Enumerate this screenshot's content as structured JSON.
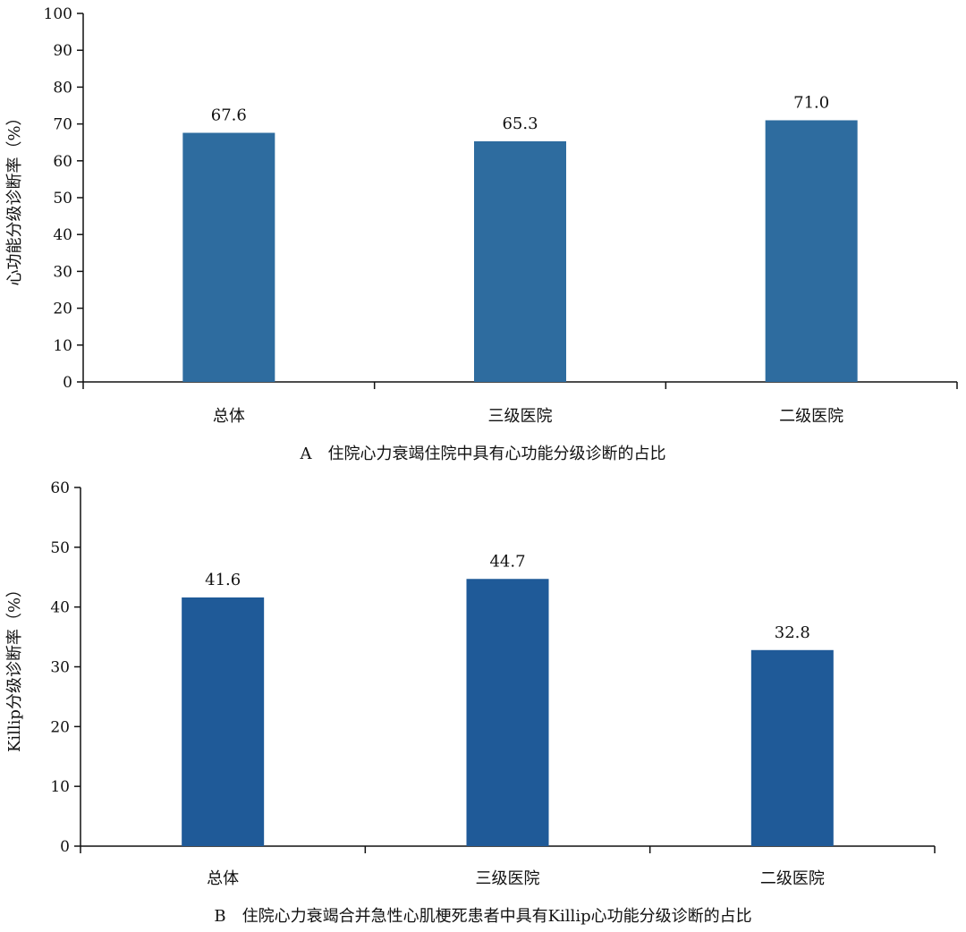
{
  "chart_data": [
    {
      "type": "bar",
      "caption": "A　住院心力衰竭住院中具有心功能分级诊断的占比",
      "ylabel": "心功能分级诊断率（%）",
      "categories": [
        "总体",
        "三级医院",
        "二级医院"
      ],
      "values": [
        67.6,
        65.3,
        71.0
      ],
      "value_labels": [
        "67.6",
        "65.3",
        "71.0"
      ],
      "ylim": [
        0,
        100
      ],
      "yticks": [
        0,
        10,
        20,
        30,
        40,
        50,
        60,
        70,
        80,
        90,
        100
      ],
      "bar_color": "#2e6c9f",
      "grid": false,
      "legend": "none"
    },
    {
      "type": "bar",
      "caption": "B　住院心力衰竭合并急性心肌梗死患者中具有Killip心功能分级诊断的占比",
      "ylabel": "Killip分级诊断率（%）",
      "categories": [
        "总体",
        "三级医院",
        "二级医院"
      ],
      "values": [
        41.6,
        44.7,
        32.8
      ],
      "value_labels": [
        "41.6",
        "44.7",
        "32.8"
      ],
      "ylim": [
        0,
        60
      ],
      "yticks": [
        0,
        10,
        20,
        30,
        40,
        50,
        60
      ],
      "bar_color": "#1f5a98",
      "grid": false,
      "legend": "none"
    }
  ]
}
